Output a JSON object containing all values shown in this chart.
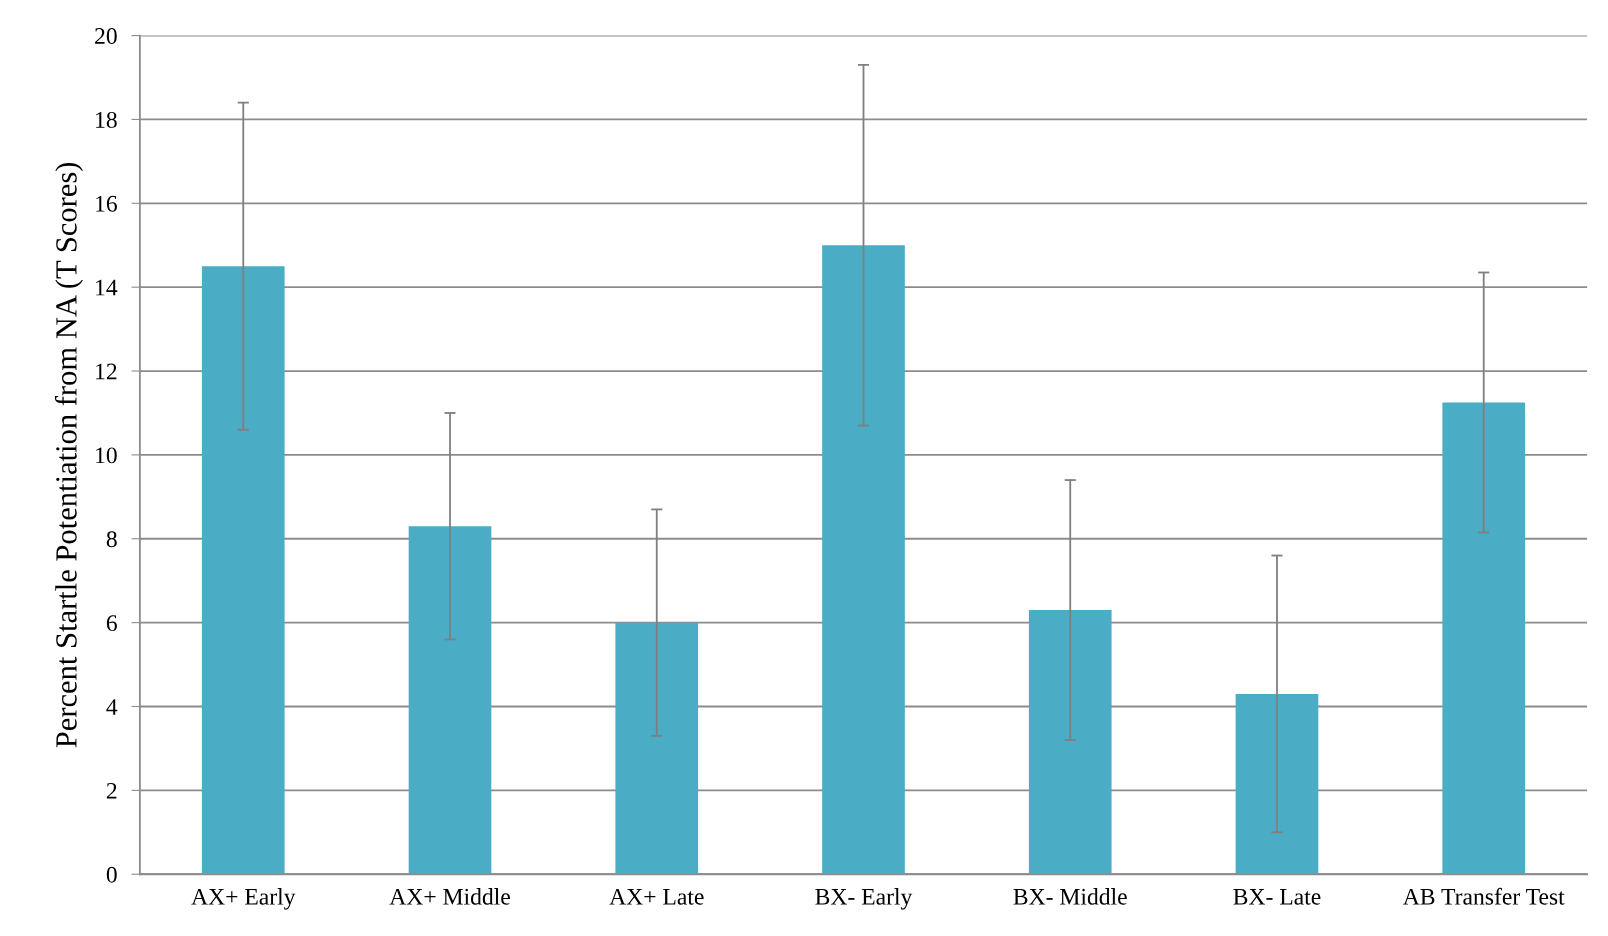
{
  "chart_data": {
    "type": "bar",
    "ylabel": "Percent Startle Potentiation from NA (T Scores)",
    "categories": [
      "AX+ Early",
      "AX+ Middle",
      "AX+ Late",
      "BX- Early",
      "BX- Middle",
      "BX- Late",
      "AB Transfer Test"
    ],
    "values": [
      14.5,
      8.3,
      6.0,
      15.0,
      6.3,
      4.3,
      11.25
    ],
    "errors": [
      3.9,
      2.7,
      2.7,
      4.3,
      3.1,
      3.3,
      3.1
    ],
    "color": "#4bacc6",
    "ylim": [
      0,
      20
    ],
    "yticks": [
      0,
      2,
      4,
      6,
      8,
      10,
      12,
      14,
      16,
      18,
      20
    ],
    "grid": "y"
  }
}
